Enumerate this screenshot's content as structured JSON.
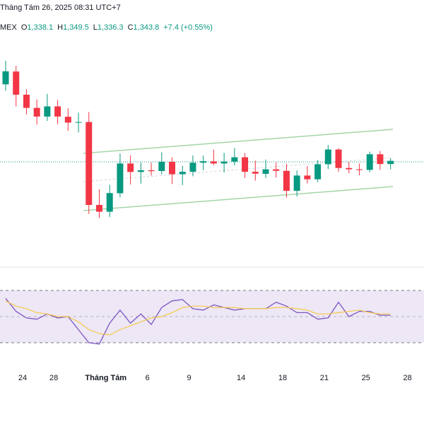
{
  "header": {
    "timestamp": "Tháng Tám 26, 2025 08:31 UTC+7",
    "symbol_fragment": "MEX",
    "open_label": "O",
    "open": "1,338.1",
    "high_label": "H",
    "high": "1,349.5",
    "low_label": "L",
    "low": "1,336.3",
    "close_label": "C",
    "close": "1,343.8",
    "change": "+7.4 (+0.55%)"
  },
  "colors": {
    "up": "#089981",
    "down": "#f23645",
    "channel": "#a5d6a7",
    "rsi_line": "#7e57c2",
    "rsi_ma": "#f7c948",
    "rsi_band": "#ede7f6",
    "current_price_line": "#089981"
  },
  "chart_data": [
    {
      "type": "candlestick",
      "title": "",
      "x_tick_labels": [
        "24",
        "28",
        "Tháng Tám",
        "6",
        "9",
        "14",
        "18",
        "21",
        "25",
        "28"
      ],
      "x_tick_index": [
        0,
        3,
        8,
        12,
        16,
        21,
        25,
        29,
        33,
        37
      ],
      "ohlc": [
        [
          1334.0,
          1346.5,
          1330.6,
          1340.9
        ],
        [
          1340.8,
          1343.8,
          1322.2,
          1328.5
        ],
        [
          1328.5,
          1331.5,
          1318.0,
          1321.5
        ],
        [
          1321.5,
          1325.9,
          1312.6,
          1316.9
        ],
        [
          1316.9,
          1328.9,
          1314.6,
          1322.3
        ],
        [
          1322.3,
          1325.7,
          1312.8,
          1316.9
        ],
        [
          1316.8,
          1321.3,
          1309.3,
          1313.7
        ],
        [
          1313.7,
          1319.0,
          1308.5,
          1314.0
        ],
        [
          1314.0,
          1319.3,
          1265.2,
          1270.0
        ],
        [
          1270.0,
          1278.3,
          1263.0,
          1266.4
        ],
        [
          1266.4,
          1280.7,
          1263.6,
          1276.3
        ],
        [
          1276.2,
          1297.3,
          1274.0,
          1292.0
        ],
        [
          1292.0,
          1296.3,
          1280.8,
          1287.5
        ],
        [
          1287.5,
          1292.5,
          1281.3,
          1288.4
        ],
        [
          1288.4,
          1292.5,
          1285.6,
          1287.9
        ],
        [
          1288.0,
          1297.9,
          1286.2,
          1292.9
        ],
        [
          1292.9,
          1295.3,
          1281.1,
          1286.3
        ],
        [
          1286.3,
          1290.7,
          1280.6,
          1287.6
        ],
        [
          1287.6,
          1296.3,
          1285.2,
          1292.4
        ],
        [
          1292.4,
          1296.2,
          1288.4,
          1293.2
        ],
        [
          1293.1,
          1299.3,
          1291.1,
          1292.0
        ],
        [
          1292.0,
          1297.7,
          1287.2,
          1293.0
        ],
        [
          1293.0,
          1300.2,
          1290.9,
          1295.3
        ],
        [
          1295.3,
          1297.6,
          1284.3,
          1287.6
        ],
        [
          1287.6,
          1293.5,
          1282.9,
          1286.6
        ],
        [
          1286.5,
          1294.1,
          1284.4,
          1288.9
        ],
        [
          1288.9,
          1292.5,
          1284.5,
          1288.1
        ],
        [
          1288.1,
          1291.8,
          1273.9,
          1277.5
        ],
        [
          1277.5,
          1288.3,
          1274.5,
          1285.6
        ],
        [
          1285.6,
          1290.6,
          1281.4,
          1283.6
        ],
        [
          1283.6,
          1293.8,
          1282.1,
          1291.6
        ],
        [
          1291.6,
          1301.8,
          1289.0,
          1299.4
        ],
        [
          1299.4,
          1300.1,
          1287.6,
          1289.6
        ],
        [
          1289.6,
          1292.8,
          1286.8,
          1288.9
        ],
        [
          1288.9,
          1292.0,
          1285.7,
          1288.5
        ],
        [
          1288.6,
          1298.3,
          1287.3,
          1296.9
        ],
        [
          1296.9,
          1298.7,
          1288.6,
          1291.7
        ],
        [
          1291.7,
          1294.8,
          1288.9,
          1293.4
        ]
      ]
    },
    {
      "type": "line",
      "title": "",
      "ylim": [
        0,
        100
      ],
      "band": [
        30,
        70
      ],
      "midline": 50,
      "series": [
        {
          "values": [
            64,
            54,
            49,
            48,
            52,
            49,
            50,
            40,
            30,
            29,
            45,
            55,
            45,
            52,
            44,
            57,
            62,
            63,
            56,
            55,
            59,
            57,
            55,
            56,
            56,
            56,
            61,
            58,
            53,
            53,
            48,
            49,
            61,
            50,
            54,
            54,
            51,
            51
          ]
        },
        {
          "values": [
            62,
            58,
            56,
            53,
            52,
            50,
            50,
            46,
            40,
            37,
            36,
            40,
            43,
            46,
            49,
            50,
            53,
            57,
            58,
            58,
            57,
            57,
            57,
            56,
            56,
            56,
            57,
            57,
            56,
            55,
            52,
            52,
            53,
            54,
            55,
            53,
            52,
            52
          ]
        }
      ]
    }
  ]
}
